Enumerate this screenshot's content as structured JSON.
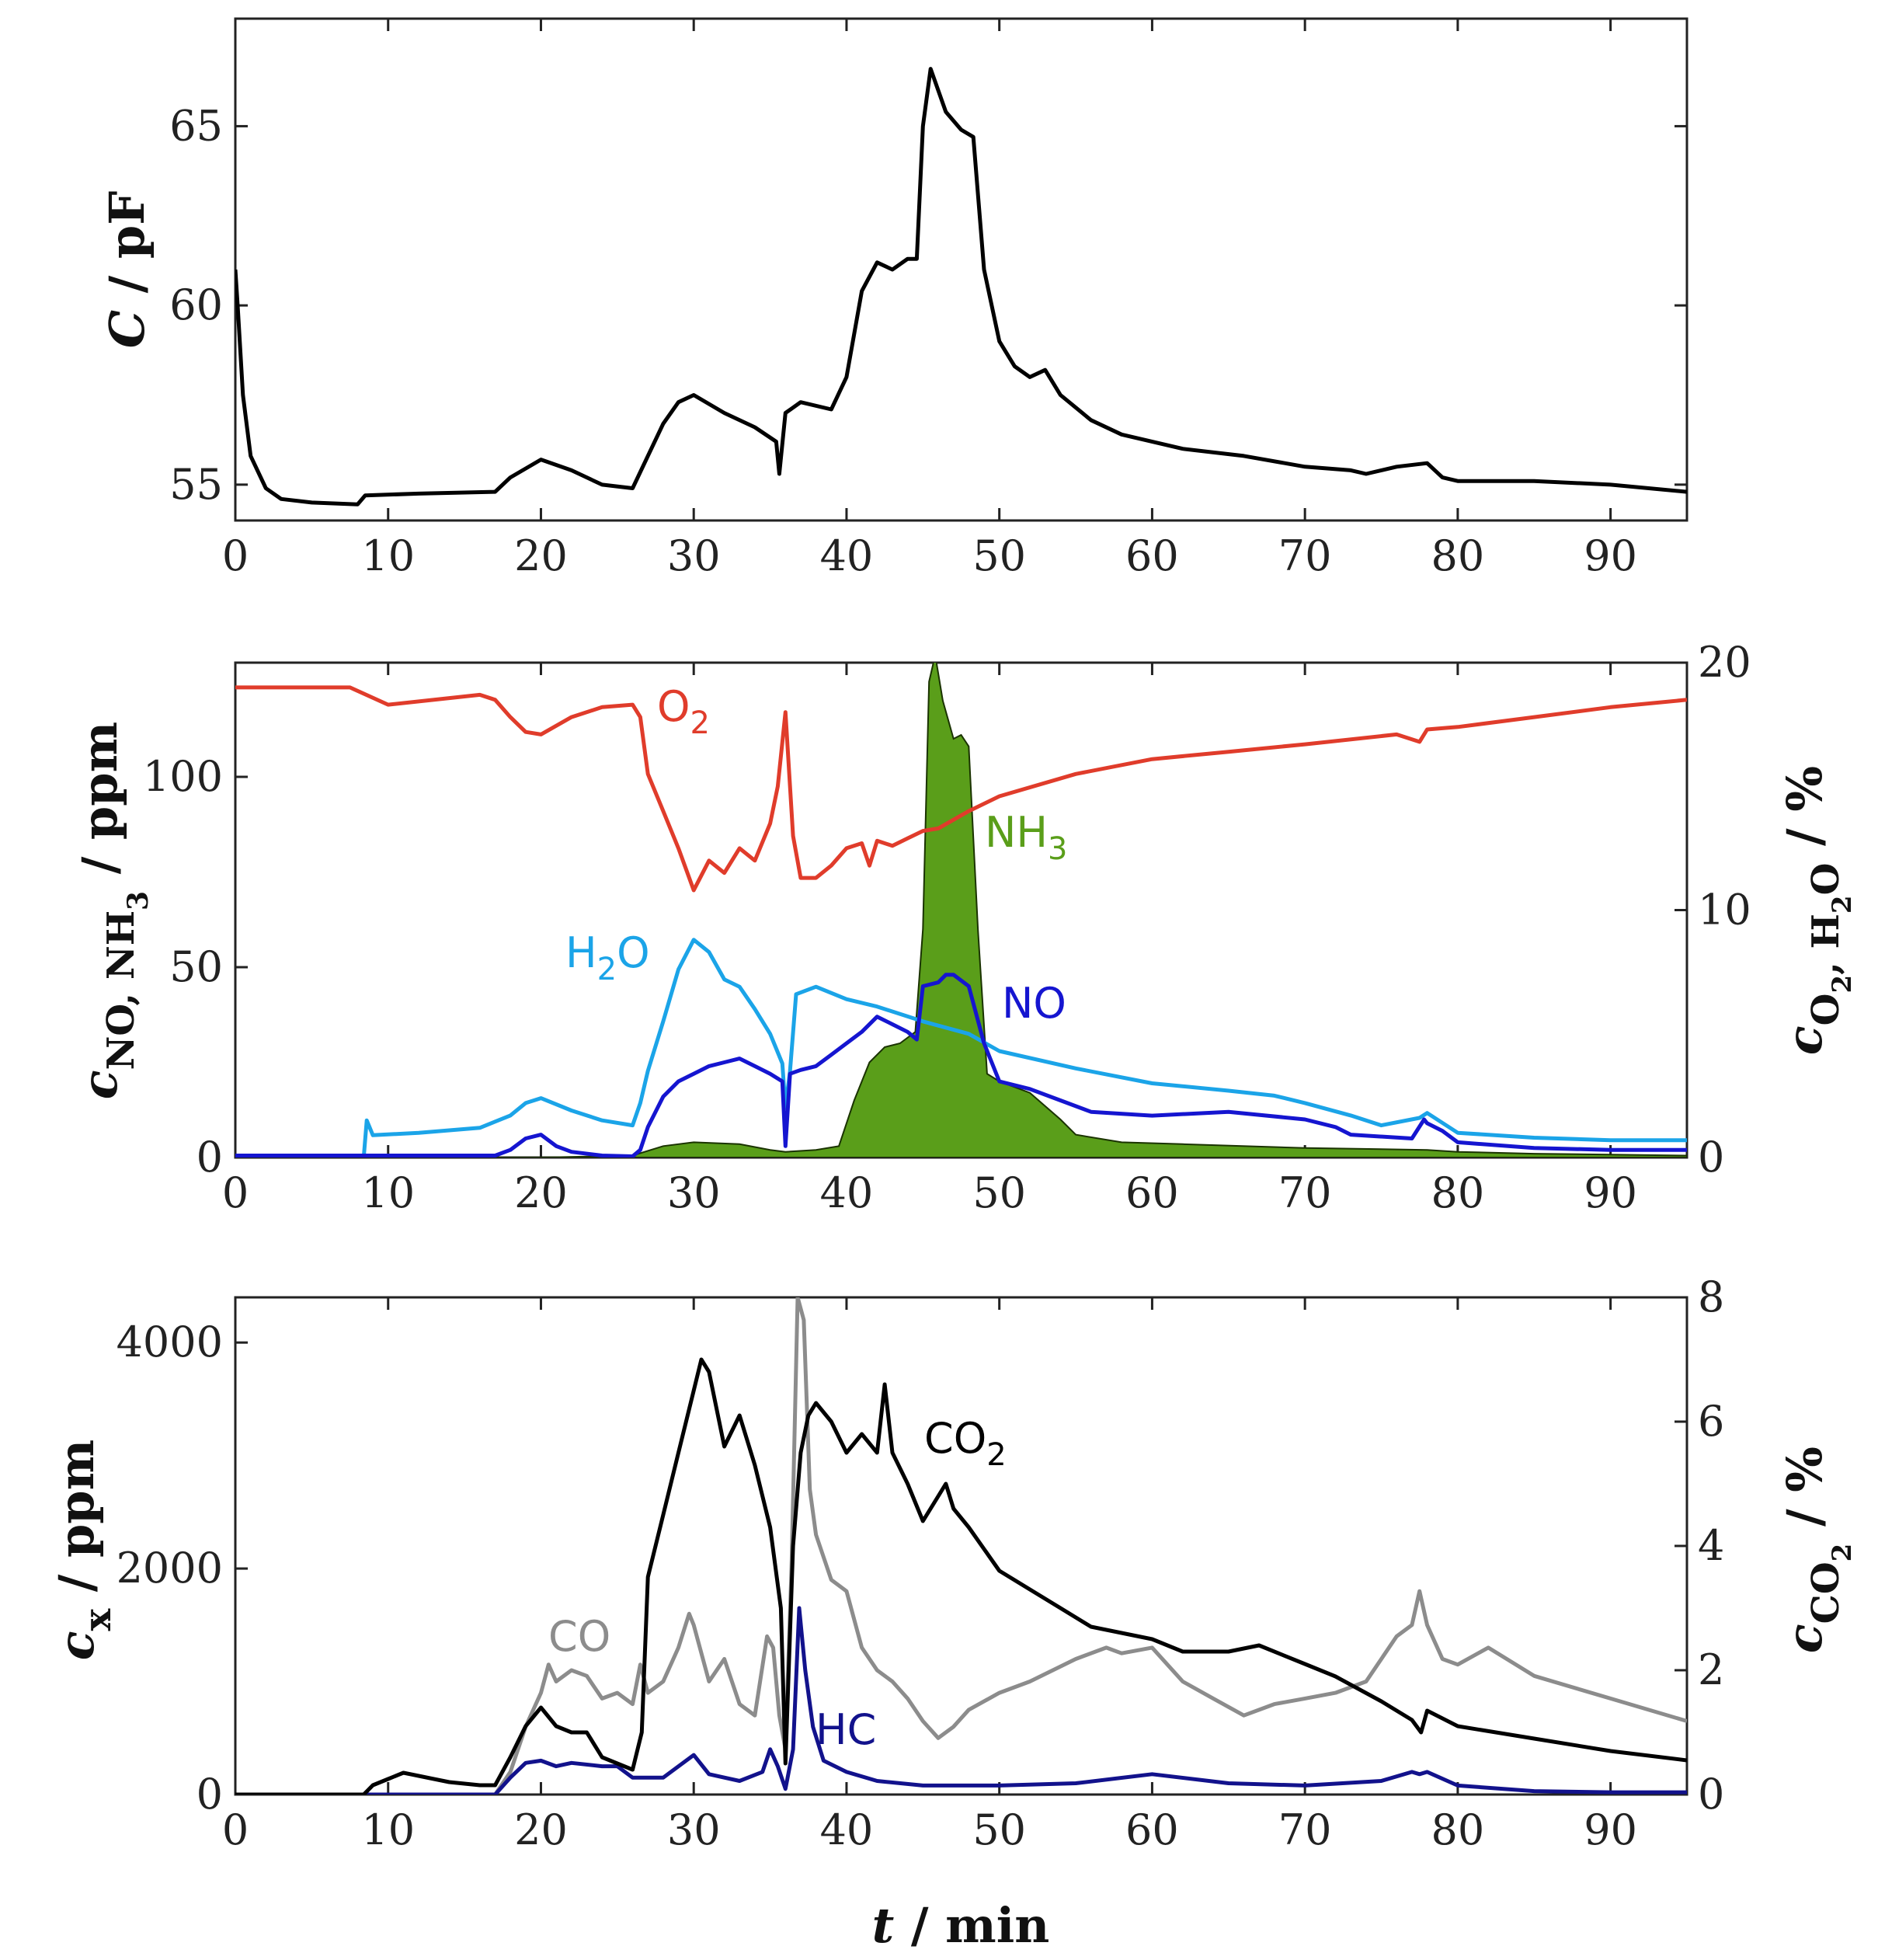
{
  "chart_data": [
    {
      "type": "line",
      "panel": "top",
      "ylabel": "C / pF",
      "xlim": [
        0,
        95
      ],
      "ylim": [
        54,
        68
      ],
      "xticks": [
        0,
        10,
        20,
        30,
        40,
        50,
        60,
        70,
        80,
        90
      ],
      "yticks": [
        55,
        60,
        65
      ],
      "series": [
        {
          "name": "C",
          "color": "#000000",
          "x": [
            0,
            0.15,
            0.5,
            1,
            2,
            3,
            5,
            8,
            8.5,
            12,
            17,
            18,
            20,
            22,
            24,
            26,
            27,
            28,
            29,
            30,
            32,
            34,
            35.4,
            35.6,
            36,
            37,
            39,
            40,
            41,
            42,
            43,
            44,
            44.6,
            45,
            45.5,
            46.5,
            47.5,
            48.3,
            49,
            50,
            51,
            52,
            53,
            54,
            56,
            58,
            62,
            66,
            70,
            73,
            74,
            76,
            78,
            79,
            80,
            85,
            90,
            95
          ],
          "y": [
            61,
            60,
            57.5,
            55.8,
            54.9,
            54.6,
            54.5,
            54.45,
            54.7,
            54.75,
            54.8,
            55.2,
            55.7,
            55.4,
            55.0,
            54.9,
            55.8,
            56.7,
            57.3,
            57.5,
            57.0,
            56.6,
            56.2,
            55.3,
            57.0,
            57.3,
            57.1,
            58.0,
            60.4,
            61.2,
            61.0,
            61.3,
            61.3,
            65.0,
            66.6,
            65.4,
            64.9,
            64.7,
            61.0,
            59.0,
            58.3,
            58.0,
            58.2,
            57.5,
            56.8,
            56.4,
            56.0,
            55.8,
            55.5,
            55.4,
            55.3,
            55.5,
            55.6,
            55.2,
            55.1,
            55.1,
            55.0,
            54.8
          ]
        }
      ]
    },
    {
      "type": "area",
      "panel": "middle",
      "ylabel": "c_NO, NH3 / ppm",
      "ylabel_right": "c_O2, H2O / %",
      "xlim": [
        0,
        95
      ],
      "ylim": [
        0,
        130
      ],
      "ylim_right": [
        0,
        20
      ],
      "xticks": [
        0,
        10,
        20,
        30,
        40,
        50,
        60,
        70,
        80,
        90
      ],
      "yticks": [
        0,
        50,
        100
      ],
      "yticks_right": [
        0,
        10,
        20
      ],
      "series": [
        {
          "name": "NH3",
          "axis": "left",
          "color": "#5a9e1a",
          "fill": true,
          "x": [
            0,
            20,
            26,
            28,
            30,
            33,
            35,
            36,
            38,
            39.5,
            40.5,
            41.5,
            42.5,
            43.5,
            44.5,
            45,
            45.4,
            45.8,
            46.3,
            47,
            47.5,
            48,
            48.6,
            49.2,
            50,
            52,
            54,
            55,
            58,
            62,
            70,
            78,
            80,
            85,
            95
          ],
          "y": [
            0,
            0,
            0.5,
            3,
            4,
            3.5,
            2,
            1.5,
            2,
            3,
            15,
            25,
            29,
            30,
            33,
            60,
            125,
            132,
            120,
            110,
            111,
            108,
            60,
            22,
            20,
            17,
            10,
            6,
            4,
            3.5,
            2.5,
            2,
            1.5,
            1,
            0.5
          ]
        },
        {
          "name": "O2",
          "axis": "right",
          "color": "#e03c2b",
          "x": [
            0,
            7.5,
            10,
            16,
            17,
            18,
            19,
            20,
            22,
            24,
            26,
            26.5,
            27,
            28,
            29,
            30,
            31,
            32,
            33,
            34,
            35,
            35.5,
            36,
            36.5,
            37,
            38,
            39,
            40,
            41,
            41.5,
            42,
            43,
            44,
            45,
            46,
            48,
            50,
            55,
            60,
            65,
            70,
            76,
            77.5,
            78,
            80,
            85,
            90,
            95
          ],
          "y": [
            19.0,
            19.0,
            18.3,
            18.7,
            18.5,
            17.8,
            17.2,
            17.1,
            17.8,
            18.2,
            18.3,
            17.8,
            15.5,
            14,
            12.5,
            10.8,
            12,
            11.5,
            12.5,
            12,
            13.5,
            15,
            18,
            13,
            11.3,
            11.3,
            11.8,
            12.5,
            12.7,
            11.8,
            12.8,
            12.6,
            12.9,
            13.2,
            13.3,
            14,
            14.6,
            15.5,
            16.1,
            16.4,
            16.7,
            17.1,
            16.8,
            17.3,
            17.4,
            17.8,
            18.2,
            18.5
          ]
        },
        {
          "name": "H2O",
          "axis": "right",
          "color": "#1ba4e8",
          "x": [
            0,
            8.4,
            8.6,
            9,
            12,
            16,
            18,
            19,
            20,
            22,
            24,
            26,
            26.5,
            27,
            28,
            29,
            30,
            31,
            32,
            33,
            34,
            35,
            35.8,
            36,
            36.3,
            36.7,
            38,
            40,
            42,
            45,
            48,
            50,
            55,
            60,
            65,
            68,
            70,
            73,
            75,
            77.5,
            78,
            80,
            85,
            90,
            95
          ],
          "y": [
            0,
            0,
            1.5,
            0.9,
            1.0,
            1.2,
            1.7,
            2.2,
            2.4,
            1.9,
            1.5,
            1.3,
            2.2,
            3.5,
            5.5,
            7.6,
            8.8,
            8.3,
            7.2,
            6.9,
            6.0,
            5.0,
            3.8,
            2.0,
            3.5,
            6.6,
            6.9,
            6.4,
            6.1,
            5.5,
            5.0,
            4.3,
            3.6,
            3.0,
            2.7,
            2.5,
            2.2,
            1.7,
            1.3,
            1.6,
            1.8,
            1.0,
            0.8,
            0.7,
            0.7
          ]
        },
        {
          "name": "NO",
          "axis": "left",
          "color": "#1515d0",
          "x": [
            0,
            8,
            17,
            18,
            19,
            20,
            21,
            22,
            24,
            26,
            26.5,
            27,
            28,
            29,
            30,
            31,
            32,
            33,
            34,
            35,
            35.8,
            36,
            36.3,
            37,
            38,
            39,
            40,
            41,
            42,
            43,
            44,
            44.6,
            45,
            46,
            46.5,
            47,
            48,
            49,
            50,
            52,
            54,
            56,
            60,
            65,
            70,
            72,
            73,
            77,
            77.8,
            78,
            79,
            80,
            85,
            90,
            95
          ],
          "y": [
            0.5,
            0.5,
            0.5,
            2,
            5,
            6,
            3,
            1.5,
            0.5,
            0.3,
            2,
            8,
            16,
            20,
            22,
            24,
            25,
            26,
            24,
            22,
            20,
            3,
            22,
            23,
            24,
            27,
            30,
            33,
            37,
            35,
            33,
            31,
            45,
            46,
            48,
            48,
            45,
            30,
            20,
            18,
            15,
            12,
            11,
            12,
            10,
            8,
            6,
            5,
            10,
            9,
            7,
            4,
            2.5,
            2,
            2
          ]
        }
      ]
    },
    {
      "type": "line",
      "panel": "bottom",
      "xlabel": "t / min",
      "ylabel": "c_x / ppm",
      "ylabel_right": "c_CO2 / %",
      "xlim": [
        0,
        95
      ],
      "ylim": [
        0,
        4400
      ],
      "ylim_right": [
        0,
        8
      ],
      "xticks": [
        0,
        10,
        20,
        30,
        40,
        50,
        60,
        70,
        80,
        90
      ],
      "yticks": [
        0,
        2000,
        4000
      ],
      "yticks_right": [
        0,
        2,
        4,
        6,
        8
      ],
      "series": [
        {
          "name": "CO",
          "axis": "left",
          "color": "#8c8c8c",
          "x": [
            0,
            17,
            18,
            19,
            20,
            20.5,
            21,
            22,
            23,
            24,
            25,
            26,
            26.5,
            27,
            28,
            29,
            29.7,
            30,
            31,
            32,
            33,
            34,
            34.8,
            35.2,
            35.6,
            36,
            36.4,
            36.8,
            37.2,
            37.6,
            38,
            39,
            40,
            41,
            42,
            43,
            44,
            45,
            46,
            47,
            48,
            50,
            52,
            55,
            57,
            58,
            60,
            62,
            64,
            66,
            68,
            70,
            72,
            74,
            76,
            77,
            77.5,
            78,
            79,
            80,
            82,
            85,
            90,
            95
          ],
          "y": [
            0,
            0,
            200,
            600,
            900,
            1150,
            1000,
            1100,
            1050,
            850,
            900,
            800,
            1150,
            900,
            1000,
            1300,
            1600,
            1500,
            1000,
            1200,
            800,
            700,
            1400,
            1300,
            700,
            400,
            2000,
            4400,
            4200,
            2700,
            2300,
            1900,
            1800,
            1300,
            1100,
            1000,
            850,
            650,
            500,
            600,
            750,
            900,
            1000,
            1200,
            1300,
            1250,
            1300,
            1000,
            850,
            700,
            800,
            850,
            900,
            1000,
            1400,
            1500,
            1800,
            1500,
            1200,
            1150,
            1300,
            1050,
            850,
            650
          ]
        },
        {
          "name": "HC",
          "axis": "left",
          "color": "#12128c",
          "x": [
            0,
            17,
            18,
            19,
            20,
            21,
            22,
            24,
            25,
            26,
            28,
            29.5,
            30,
            31,
            33,
            34.5,
            35,
            35.5,
            36,
            36.5,
            36.9,
            37.3,
            37.8,
            38.5,
            40,
            42,
            45,
            50,
            55,
            60,
            65,
            70,
            75,
            77,
            77.5,
            78,
            80,
            85,
            90,
            95
          ],
          "y": [
            0,
            0,
            150,
            280,
            300,
            250,
            280,
            250,
            250,
            150,
            150,
            300,
            350,
            180,
            120,
            200,
            400,
            250,
            50,
            400,
            1650,
            1100,
            600,
            300,
            200,
            120,
            80,
            80,
            100,
            180,
            100,
            80,
            120,
            200,
            180,
            200,
            80,
            30,
            20,
            20
          ]
        },
        {
          "name": "CO2",
          "axis": "right",
          "color": "#000000",
          "x": [
            0,
            8.4,
            9,
            10,
            11,
            12,
            14,
            16,
            17,
            18,
            19,
            20,
            21,
            22,
            23,
            24,
            25,
            26,
            26.6,
            27,
            28,
            29,
            30,
            30.5,
            31,
            32,
            33,
            34,
            35,
            35.7,
            36,
            36.5,
            37,
            37.5,
            38,
            39,
            40,
            41,
            42,
            42.5,
            43,
            44,
            45,
            46,
            46.5,
            47,
            48,
            50,
            52,
            54,
            56,
            60,
            62,
            65,
            67,
            70,
            72,
            75,
            77,
            77.6,
            78,
            80,
            85,
            90,
            95
          ],
          "y": [
            0,
            0,
            0.15,
            0.25,
            0.35,
            0.3,
            0.2,
            0.15,
            0.15,
            0.6,
            1.1,
            1.4,
            1.1,
            1.0,
            1.0,
            0.6,
            0.5,
            0.4,
            1.0,
            3.5,
            4.5,
            5.5,
            6.5,
            7.0,
            6.8,
            5.6,
            6.1,
            5.3,
            4.3,
            3.0,
            0.5,
            4.0,
            5.5,
            6.1,
            6.3,
            6.0,
            5.5,
            5.8,
            5.5,
            6.6,
            5.5,
            5.0,
            4.4,
            4.8,
            5.0,
            4.6,
            4.3,
            3.6,
            3.3,
            3.0,
            2.7,
            2.5,
            2.3,
            2.3,
            2.4,
            2.1,
            1.9,
            1.5,
            1.2,
            1.0,
            1.35,
            1.1,
            0.9,
            0.7,
            0.55
          ]
        }
      ]
    }
  ]
}
